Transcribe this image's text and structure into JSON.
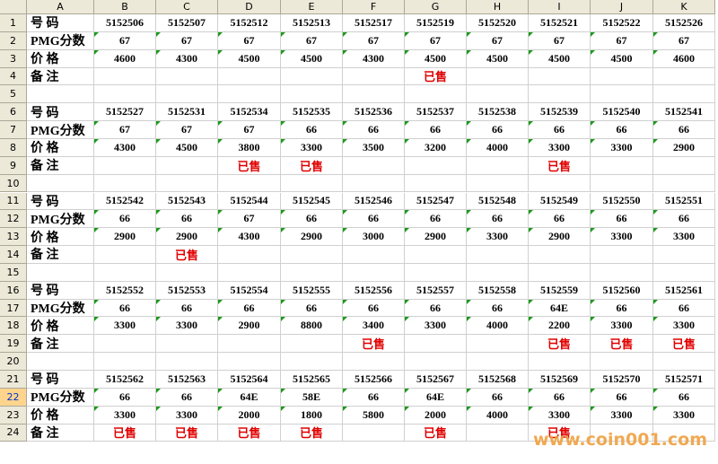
{
  "sheet": {
    "columns": [
      "A",
      "B",
      "C",
      "D",
      "E",
      "F",
      "G",
      "H",
      "I",
      "J",
      "K"
    ],
    "row_numbers": [
      1,
      2,
      3,
      4,
      5,
      6,
      7,
      8,
      9,
      10,
      11,
      12,
      13,
      14,
      15,
      16,
      17,
      18,
      19,
      20,
      21,
      22,
      23,
      24
    ],
    "rows": [
      [
        "号 码",
        5152506,
        5152507,
        5152512,
        5152513,
        5152517,
        5152519,
        5152520,
        5152521,
        5152522,
        5152526
      ],
      [
        "PMG分数",
        67,
        67,
        67,
        67,
        67,
        67,
        67,
        67,
        67,
        67
      ],
      [
        "价 格",
        4600,
        4300,
        4500,
        4500,
        4300,
        4500,
        4500,
        4500,
        4500,
        4600
      ],
      [
        "备 注",
        null,
        null,
        null,
        null,
        null,
        "已售",
        null,
        null,
        null,
        null
      ],
      [
        null,
        null,
        null,
        null,
        null,
        null,
        null,
        null,
        null,
        null,
        null
      ],
      [
        "号 码",
        5152527,
        5152531,
        5152534,
        5152535,
        5152536,
        5152537,
        5152538,
        5152539,
        5152540,
        5152541
      ],
      [
        "PMG分数",
        67,
        67,
        67,
        66,
        66,
        66,
        66,
        66,
        66,
        66
      ],
      [
        "价 格",
        4300,
        4500,
        3800,
        3300,
        3500,
        3200,
        4000,
        3300,
        3300,
        2900
      ],
      [
        "备 注",
        null,
        null,
        "已售",
        "已售",
        null,
        null,
        null,
        "已售",
        null,
        null
      ],
      [
        null,
        null,
        null,
        null,
        null,
        null,
        null,
        null,
        null,
        null,
        null
      ],
      [
        "号 码",
        5152542,
        5152543,
        5152544,
        5152545,
        5152546,
        5152547,
        5152548,
        5152549,
        5152550,
        5152551
      ],
      [
        "PMG分数",
        66,
        66,
        67,
        66,
        66,
        66,
        66,
        66,
        66,
        66
      ],
      [
        "价 格",
        2900,
        2900,
        4300,
        2900,
        3000,
        2900,
        3300,
        2900,
        3300,
        3300
      ],
      [
        "备 注",
        null,
        "已售",
        null,
        null,
        null,
        null,
        null,
        null,
        null,
        null
      ],
      [
        null,
        null,
        null,
        null,
        null,
        null,
        null,
        null,
        null,
        null,
        null
      ],
      [
        "号 码",
        5152552,
        5152553,
        5152554,
        5152555,
        5152556,
        5152557,
        5152558,
        5152559,
        5152560,
        5152561
      ],
      [
        "PMG分数",
        66,
        66,
        66,
        66,
        66,
        66,
        66,
        "64E",
        66,
        66
      ],
      [
        "价 格",
        3300,
        3300,
        2900,
        8800,
        3400,
        3300,
        4000,
        2200,
        3300,
        3300
      ],
      [
        "备 注",
        null,
        null,
        null,
        null,
        "已售",
        null,
        null,
        "已售",
        "已售",
        "已售"
      ],
      [
        null,
        null,
        null,
        null,
        null,
        null,
        null,
        null,
        null,
        null,
        null
      ],
      [
        "号 码",
        5152562,
        5152563,
        5152564,
        5152565,
        5152566,
        5152567,
        5152568,
        5152569,
        5152570,
        5152571
      ],
      [
        "PMG分数",
        66,
        66,
        "64E",
        "58E",
        66,
        "64E",
        66,
        66,
        66,
        66
      ],
      [
        "价 格",
        3300,
        3300,
        2000,
        1800,
        5800,
        2000,
        4000,
        3300,
        3300,
        3300
      ],
      [
        "备 注",
        "已售",
        "已售",
        "已售",
        "已售",
        null,
        "已售",
        null,
        "已售",
        null,
        null
      ]
    ]
  },
  "watermark": "www.coin001.com"
}
